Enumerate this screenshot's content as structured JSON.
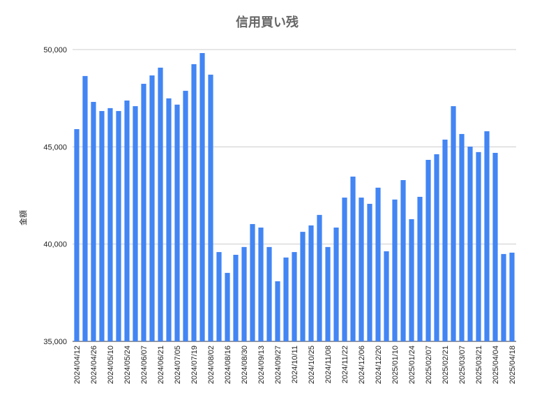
{
  "chart_data": {
    "type": "bar",
    "title": "信用買い残",
    "y_label": "金額",
    "categories": [
      "2024/04/12",
      null,
      "2024/04/26",
      null,
      "2024/05/10",
      null,
      "2024/05/24",
      null,
      "2024/06/07",
      null,
      "2024/06/21",
      null,
      "2024/07/05",
      null,
      "2024/07/19",
      null,
      "2024/08/02",
      null,
      "2024/08/16",
      null,
      "2024/08/30",
      null,
      "2024/09/13",
      null,
      "2024/09/27",
      null,
      "2024/10/11",
      null,
      "2024/10/25",
      null,
      "2024/11/08",
      null,
      "2024/11/22",
      null,
      "2024/12/06",
      null,
      "2024/12/20",
      null,
      "2025/01/10",
      null,
      "2025/01/24",
      null,
      "2025/02/07",
      null,
      "2025/02/21",
      null,
      "2025/03/07",
      null,
      "2025/03/21",
      null,
      "2025/04/04",
      null,
      "2025/04/18"
    ],
    "values": [
      45910,
      48640,
      47310,
      46840,
      46990,
      46840,
      47380,
      47090,
      48240,
      48670,
      49070,
      47490,
      47170,
      47880,
      49250,
      49820,
      48710,
      39590,
      38520,
      39450,
      39850,
      41030,
      40850,
      39850,
      38090,
      39310,
      39590,
      40630,
      40960,
      41500,
      39850,
      40850,
      42390,
      43470,
      42390,
      42070,
      42900,
      39630,
      42290,
      43290,
      41280,
      42430,
      44330,
      44620,
      45370,
      47090,
      45660,
      45010,
      44730,
      45800,
      44690,
      39490,
      39560
    ],
    "color": "#4285f4",
    "ylim": [
      35000,
      50000
    ],
    "yticks": [
      {
        "value": 35000,
        "label": "35,000"
      },
      {
        "value": 40000,
        "label": "40,000"
      },
      {
        "value": 45000,
        "label": "45,000"
      },
      {
        "value": 50000,
        "label": "50,000"
      }
    ],
    "grid": true
  }
}
